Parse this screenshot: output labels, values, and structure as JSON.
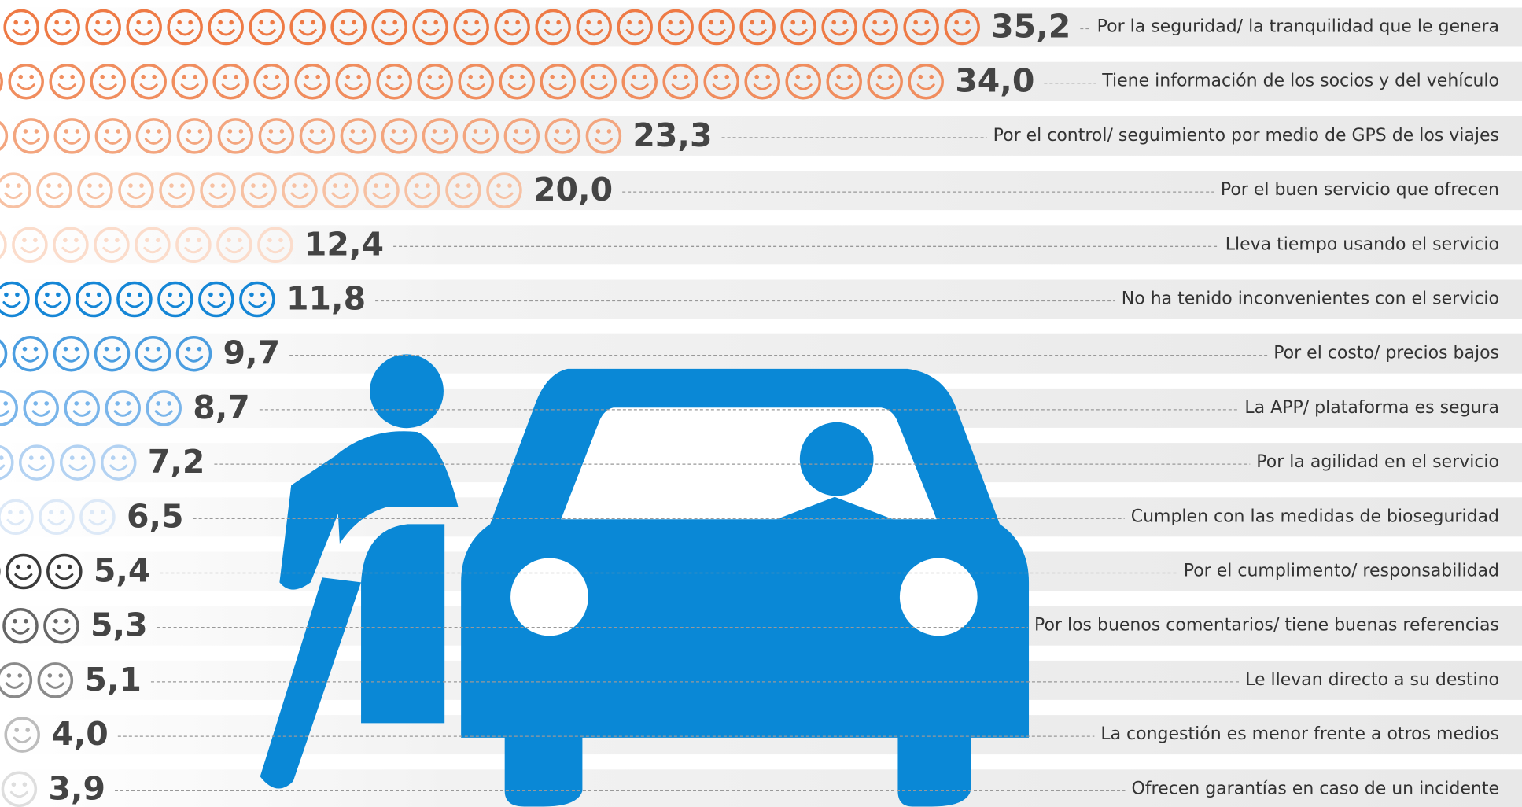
{
  "chart_data": {
    "type": "pictograph",
    "categories": [
      "Por la seguridad/ la tranquilidad que le genera",
      "Tiene información de los socios y del vehículo",
      "Por el control/ seguimiento por medio de GPS de los viajes",
      "Por el buen servicio que ofrecen",
      "Lleva tiempo usando el servicio",
      "No ha tenido inconvenientes con el servicio",
      "Por el costo/ precios bajos",
      "La APP/ plataforma es segura",
      "Por la agilidad en el servicio",
      "Cumplen con las medidas de bioseguridad",
      "Por el cumplimento/ responsabilidad",
      "Por los buenos comentarios/ tiene buenas referencias",
      "Le llevan directo a su destino",
      "La congestión es menor frente a otros medios",
      "Ofrecen garantías en caso de un incidente"
    ],
    "values": [
      35.2,
      34.0,
      23.3,
      20.0,
      12.4,
      11.8,
      9.7,
      8.7,
      7.2,
      6.5,
      5.4,
      5.3,
      5.1,
      4.0,
      3.9
    ],
    "value_labels": [
      "35,2",
      "34,0",
      "23,3",
      "20,0",
      "12,4",
      "11,8",
      "9,7",
      "8,7",
      "7,2",
      "6,5",
      "5,4",
      "5,3",
      "5,1",
      "4,0",
      "3,9"
    ],
    "colors": [
      "#ee7a45",
      "#f08d5e",
      "#f3a57e",
      "#f7c1a3",
      "#fbdccb",
      "#1586d6",
      "#4a9de0",
      "#7ab5ea",
      "#b3d2f2",
      "#dde9f7",
      "#3a3a3a",
      "#666666",
      "#8a8a8a",
      "#bdbdbd",
      "#dedede"
    ]
  }
}
